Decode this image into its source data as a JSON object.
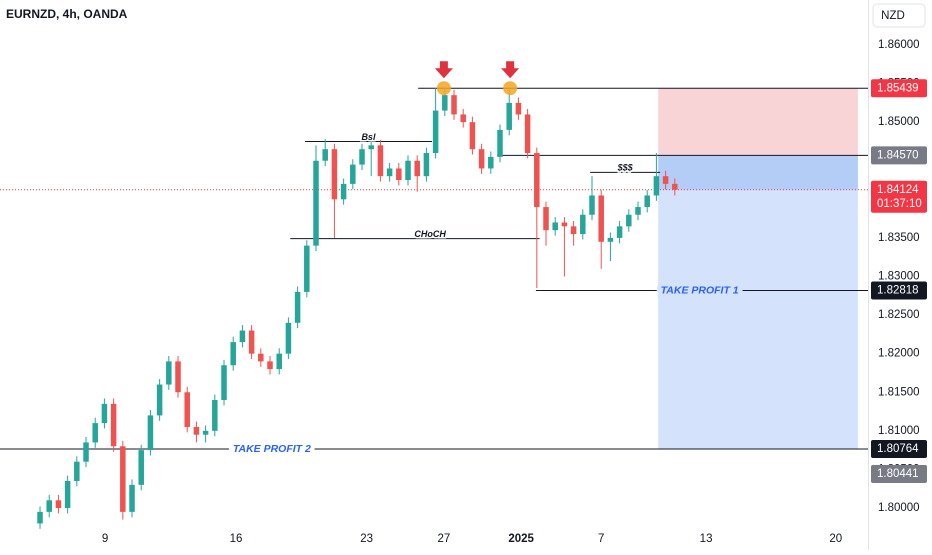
{
  "chart_data": {
    "type": "candlestick",
    "title": "EURNZD, 4h, OANDA",
    "currency": "NZD",
    "up_color": "#26a69a",
    "down_color": "#ef5350",
    "xlim": [
      -4.35,
      90
    ],
    "xticks": [
      {
        "value": 7.07,
        "label": "9"
      },
      {
        "value": 21.3,
        "label": "16"
      },
      {
        "value": 35.5,
        "label": "23"
      },
      {
        "value": 43.9,
        "label": "27"
      },
      {
        "value": 52.3,
        "label": "2025"
      },
      {
        "value": 61,
        "label": "7"
      },
      {
        "value": 72.4,
        "label": "13"
      },
      {
        "value": 86.5,
        "label": "20"
      }
    ],
    "ylim": [
      1.79715,
      1.86583
    ],
    "yticks": [
      {
        "value": 1.86,
        "label": "1.86000"
      },
      {
        "value": 1.855,
        "label": "1.85500"
      },
      {
        "value": 1.85,
        "label": "1.85000"
      },
      {
        "value": 1.845,
        "label": "1.84500"
      },
      {
        "value": 1.84,
        "label": "1.84000"
      },
      {
        "value": 1.835,
        "label": "1.83500"
      },
      {
        "value": 1.83,
        "label": "1.83000"
      },
      {
        "value": 1.825,
        "label": "1.82500"
      },
      {
        "value": 1.82,
        "label": "1.82000"
      },
      {
        "value": 1.815,
        "label": "1.81500"
      },
      {
        "value": 1.81,
        "label": "1.81000"
      },
      {
        "value": 1.805,
        "label": "1.80500"
      },
      {
        "value": 1.8,
        "label": "1.80000"
      }
    ],
    "open": [
      1.798,
      1.7995,
      1.801,
      1.8,
      1.8035,
      1.806,
      1.8085,
      1.811,
      1.8135,
      1.808,
      1.7995,
      1.803,
      1.8075,
      1.812,
      1.816,
      1.819,
      1.815,
      1.8105,
      1.8095,
      1.81,
      1.814,
      1.8185,
      1.8215,
      1.823,
      1.82,
      1.819,
      1.818,
      1.82,
      1.824,
      1.828,
      1.834,
      1.845,
      1.8465,
      1.84,
      1.842,
      1.8445,
      1.8465,
      1.847,
      1.843,
      1.844,
      1.8425,
      1.845,
      1.843,
      1.846,
      1.8515,
      1.8535,
      1.851,
      1.85,
      1.8465,
      1.844,
      1.8455,
      1.849,
      1.8525,
      1.851,
      1.846,
      1.839,
      1.836,
      1.837,
      1.8365,
      1.8355,
      1.838,
      1.8405,
      1.8345,
      1.835,
      1.8365,
      1.838,
      1.839,
      1.8405,
      1.843,
      1.842
    ],
    "high": [
      1.8002,
      1.8017,
      1.8017,
      1.8042,
      1.8067,
      1.8092,
      1.8117,
      1.8142,
      1.8142,
      1.8087,
      1.8037,
      1.8082,
      1.8127,
      1.8167,
      1.8197,
      1.8197,
      1.8157,
      1.8112,
      1.8107,
      1.8147,
      1.8192,
      1.8222,
      1.8237,
      1.8237,
      1.8207,
      1.8197,
      1.8207,
      1.8247,
      1.8287,
      1.8347,
      1.847,
      1.8478,
      1.8472,
      1.8427,
      1.8452,
      1.8472,
      1.8477,
      1.8477,
      1.8447,
      1.8447,
      1.8457,
      1.8457,
      1.8467,
      1.8544,
      1.8544,
      1.8542,
      1.8517,
      1.8507,
      1.8472,
      1.8462,
      1.8497,
      1.8544,
      1.8532,
      1.8517,
      1.8467,
      1.8397,
      1.8377,
      1.8377,
      1.8372,
      1.8387,
      1.843,
      1.8412,
      1.8357,
      1.8372,
      1.8387,
      1.8397,
      1.8412,
      1.846,
      1.8437,
      1.8427
    ],
    "low": [
      1.7973,
      1.7988,
      1.7993,
      1.7993,
      1.8028,
      1.8053,
      1.8078,
      1.8103,
      1.8073,
      1.7985,
      1.7988,
      1.8023,
      1.8068,
      1.8113,
      1.8153,
      1.8143,
      1.8098,
      1.8085,
      1.8085,
      1.8093,
      1.8133,
      1.8178,
      1.8208,
      1.8193,
      1.8183,
      1.8173,
      1.8173,
      1.8193,
      1.8233,
      1.8273,
      1.8333,
      1.8443,
      1.835,
      1.8393,
      1.8413,
      1.8438,
      1.843,
      1.8423,
      1.8423,
      1.8418,
      1.8418,
      1.841,
      1.8423,
      1.8453,
      1.8508,
      1.8503,
      1.8493,
      1.8458,
      1.8433,
      1.8433,
      1.8448,
      1.8483,
      1.8503,
      1.8453,
      1.8285,
      1.834,
      1.8353,
      1.83,
      1.834,
      1.8348,
      1.8373,
      1.831,
      1.832,
      1.8343,
      1.8358,
      1.8373,
      1.8383,
      1.8398,
      1.8413,
      1.8405
    ],
    "close": [
      1.7995,
      1.801,
      1.8,
      1.8035,
      1.806,
      1.8085,
      1.811,
      1.8135,
      1.808,
      1.7995,
      1.803,
      1.8075,
      1.812,
      1.816,
      1.819,
      1.815,
      1.8105,
      1.8095,
      1.81,
      1.814,
      1.8185,
      1.8215,
      1.823,
      1.82,
      1.819,
      1.818,
      1.82,
      1.824,
      1.828,
      1.834,
      1.845,
      1.8465,
      1.84,
      1.842,
      1.8445,
      1.8465,
      1.847,
      1.843,
      1.844,
      1.8425,
      1.845,
      1.843,
      1.846,
      1.8515,
      1.8535,
      1.851,
      1.85,
      1.8465,
      1.844,
      1.8455,
      1.849,
      1.8525,
      1.851,
      1.846,
      1.839,
      1.836,
      1.837,
      1.8365,
      1.8355,
      1.838,
      1.8405,
      1.8345,
      1.835,
      1.8365,
      1.838,
      1.839,
      1.8405,
      1.843,
      1.842,
      1.84124
    ],
    "levels": [
      {
        "value": 1.85439,
        "label": "1.85439",
        "color": "#f23645"
      },
      {
        "value": 1.8457,
        "label": "1.84570",
        "color": "#787b86"
      },
      {
        "value": 1.84124,
        "label": "1.84124",
        "color": "#f23645",
        "countdown": "01:37:10"
      },
      {
        "value": 1.82818,
        "label": "1.82818",
        "color": "#131722"
      },
      {
        "value": 1.80764,
        "label": "1.80764",
        "color": "#131722"
      },
      {
        "value": 1.80441,
        "label": "1.80441",
        "color": "#787b86"
      }
    ],
    "lines": [
      {
        "value": 1.85439,
        "x": [
          41.1,
          90
        ]
      },
      {
        "value": 1.8457,
        "x": [
          49.7,
          90
        ]
      },
      {
        "value": 1.8475,
        "x": [
          28.8,
          42.6
        ],
        "text": "Bsl",
        "text_x": 35.7
      },
      {
        "value": 1.8349,
        "x": [
          27.2,
          54.3
        ],
        "text": "CHoCH",
        "text_x": 42.4
      },
      {
        "value": 1.8435,
        "x": [
          59.8,
          67.4
        ],
        "text": "$$$",
        "text_x": 63.6
      },
      {
        "value": 1.82818,
        "x": [
          53.9,
          90
        ],
        "text": "TAKE PROFIT 1",
        "text_x": 71.7,
        "target": true
      },
      {
        "value": 1.80764,
        "x": [
          -4.35,
          90
        ],
        "text": "TAKE PROFIT 2",
        "text_x": 25.2,
        "target": true
      }
    ],
    "highs_marked": [
      {
        "x": 43.9,
        "value": 1.8544
      },
      {
        "x": 51.1,
        "value": 1.8544
      }
    ],
    "position": {
      "x": [
        67.2,
        88.9
      ],
      "stop": 1.85439,
      "entry": 1.8457,
      "target": 1.80764,
      "current": 1.84124
    }
  }
}
